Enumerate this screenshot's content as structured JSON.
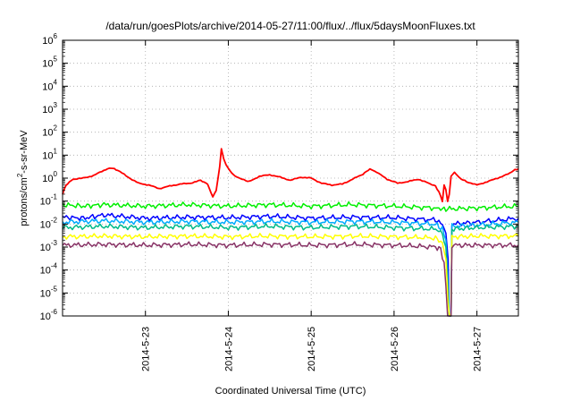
{
  "chart_data": {
    "type": "line",
    "title": "/data/run/goesPlots/archive/2014-05-27/11:00/flux/../flux/5daysMoonFluxes.txt",
    "xlabel": "Coordinated Universal Time (UTC)",
    "ylabel": {
      "prefix": "protons/cm",
      "sup": "2",
      "suffix": "-s-sr-MeV"
    },
    "y_scale": "log",
    "ylim": [
      1e-06,
      1000000.0
    ],
    "y_ticks": [
      {
        "base": "10",
        "exp": "-6",
        "value": 1e-06
      },
      {
        "base": "10",
        "exp": "-5",
        "value": 1e-05
      },
      {
        "base": "10",
        "exp": "-4",
        "value": 0.0001
      },
      {
        "base": "10",
        "exp": "-3",
        "value": 0.001
      },
      {
        "base": "10",
        "exp": "-2",
        "value": 0.01
      },
      {
        "base": "10",
        "exp": "-1",
        "value": 0.1
      },
      {
        "base": "10",
        "exp": "0",
        "value": 1
      },
      {
        "base": "10",
        "exp": "1",
        "value": 10
      },
      {
        "base": "10",
        "exp": "2",
        "value": 100
      },
      {
        "base": "10",
        "exp": "3",
        "value": 1000
      },
      {
        "base": "10",
        "exp": "4",
        "value": 10000
      },
      {
        "base": "10",
        "exp": "5",
        "value": 100000
      },
      {
        "base": "10",
        "exp": "6",
        "value": 1000000
      }
    ],
    "xlim": [
      "2014-05-22T00:00",
      "2014-05-27T12:00"
    ],
    "x_ticks": [
      {
        "label": "2014-5-23",
        "date": "2014-05-23T00:00"
      },
      {
        "label": "2014-5-24",
        "date": "2014-05-24T00:00"
      },
      {
        "label": "2014-5-25",
        "date": "2014-05-25T00:00"
      },
      {
        "label": "2014-5-26",
        "date": "2014-05-26T00:00"
      },
      {
        "label": "2014-5-27",
        "date": "2014-05-27T00:00"
      }
    ],
    "grid": true,
    "legend": "none",
    "series": [
      {
        "color": "#ff0000",
        "points": [
          [
            "2014-05-22T00:00",
            0.2
          ],
          [
            "2014-05-22T01:00",
            0.5
          ],
          [
            "2014-05-22T03:00",
            0.9
          ],
          [
            "2014-05-22T06:00",
            1.0
          ],
          [
            "2014-05-22T09:00",
            1.3
          ],
          [
            "2014-05-22T12:00",
            2.2
          ],
          [
            "2014-05-22T14:00",
            2.8
          ],
          [
            "2014-05-22T16:00",
            2.2
          ],
          [
            "2014-05-22T19:00",
            1.1
          ],
          [
            "2014-05-22T22:00",
            0.6
          ],
          [
            "2014-05-23T01:00",
            0.5
          ],
          [
            "2014-05-23T04:00",
            0.35
          ],
          [
            "2014-05-23T07:00",
            0.45
          ],
          [
            "2014-05-23T10:00",
            0.55
          ],
          [
            "2014-05-23T13:00",
            0.6
          ],
          [
            "2014-05-23T16:00",
            0.8
          ],
          [
            "2014-05-23T18:00",
            0.55
          ],
          [
            "2014-05-23T19:30",
            0.15
          ],
          [
            "2014-05-23T20:30",
            0.3
          ],
          [
            "2014-05-23T21:30",
            3.0
          ],
          [
            "2014-05-23T22:00",
            20
          ],
          [
            "2014-05-23T22:40",
            7.0
          ],
          [
            "2014-05-23T23:20",
            4.0
          ],
          [
            "2014-05-24T00:30",
            2.0
          ],
          [
            "2014-05-24T02:00",
            1.2
          ],
          [
            "2014-05-24T04:00",
            0.9
          ],
          [
            "2014-05-24T06:00",
            0.7
          ],
          [
            "2014-05-24T09:00",
            1.2
          ],
          [
            "2014-05-24T12:00",
            1.4
          ],
          [
            "2014-05-24T15:00",
            1.1
          ],
          [
            "2014-05-24T18:00",
            0.8
          ],
          [
            "2014-05-24T21:00",
            1.1
          ],
          [
            "2014-05-25T00:00",
            1.0
          ],
          [
            "2014-05-25T03:00",
            0.6
          ],
          [
            "2014-05-25T06:00",
            0.5
          ],
          [
            "2014-05-25T09:00",
            0.55
          ],
          [
            "2014-05-25T12:00",
            0.9
          ],
          [
            "2014-05-25T15:00",
            1.5
          ],
          [
            "2014-05-25T17:00",
            2.5
          ],
          [
            "2014-05-25T19:00",
            1.8
          ],
          [
            "2014-05-25T22:00",
            0.9
          ],
          [
            "2014-05-26T01:00",
            0.6
          ],
          [
            "2014-05-26T04:00",
            0.7
          ],
          [
            "2014-05-26T07:00",
            0.9
          ],
          [
            "2014-05-26T10:00",
            0.6
          ],
          [
            "2014-05-26T12:00",
            0.45
          ],
          [
            "2014-05-26T13:00",
            0.25
          ],
          [
            "2014-05-26T14:00",
            0.1
          ],
          [
            "2014-05-26T14:30",
            0.5
          ],
          [
            "2014-05-26T15:00",
            0.3
          ],
          [
            "2014-05-26T15:30",
            0.1
          ],
          [
            "2014-05-26T16:00",
            0.2
          ],
          [
            "2014-05-26T16:30",
            1.2
          ],
          [
            "2014-05-26T17:30",
            1.8
          ],
          [
            "2014-05-26T19:00",
            1.0
          ],
          [
            "2014-05-26T21:00",
            0.7
          ],
          [
            "2014-05-27T00:00",
            0.5
          ],
          [
            "2014-05-27T03:00",
            0.7
          ],
          [
            "2014-05-27T06:00",
            1.0
          ],
          [
            "2014-05-27T09:00",
            1.5
          ],
          [
            "2014-05-27T11:00",
            2.3
          ],
          [
            "2014-05-27T12:00",
            2.5
          ]
        ]
      },
      {
        "color": "#00ee00",
        "points": [
          [
            "2014-05-22T00:00",
            0.07
          ],
          [
            "2014-05-22T06:00",
            0.06
          ],
          [
            "2014-05-22T12:00",
            0.07
          ],
          [
            "2014-05-23T00:00",
            0.06
          ],
          [
            "2014-05-23T12:00",
            0.07
          ],
          [
            "2014-05-24T00:00",
            0.06
          ],
          [
            "2014-05-24T12:00",
            0.07
          ],
          [
            "2014-05-25T00:00",
            0.06
          ],
          [
            "2014-05-25T12:00",
            0.07
          ],
          [
            "2014-05-26T00:00",
            0.06
          ],
          [
            "2014-05-26T12:00",
            0.05
          ],
          [
            "2014-05-26T14:00",
            0.045
          ],
          [
            "2014-05-26T15:30",
            0.045
          ],
          [
            "2014-05-27T00:00",
            0.05
          ],
          [
            "2014-05-27T12:00",
            0.06
          ]
        ]
      },
      {
        "color": "#0000ff",
        "points": [
          [
            "2014-05-22T00:00",
            0.02
          ],
          [
            "2014-05-22T06:00",
            0.018
          ],
          [
            "2014-05-22T12:00",
            0.025
          ],
          [
            "2014-05-23T00:00",
            0.018
          ],
          [
            "2014-05-23T12:00",
            0.02
          ],
          [
            "2014-05-24T00:00",
            0.019
          ],
          [
            "2014-05-24T12:00",
            0.022
          ],
          [
            "2014-05-25T00:00",
            0.018
          ],
          [
            "2014-05-25T12:00",
            0.02
          ],
          [
            "2014-05-26T00:00",
            0.019
          ],
          [
            "2014-05-26T12:00",
            0.015
          ],
          [
            "2014-05-26T14:00",
            0.01
          ],
          [
            "2014-05-26T15:00",
            0.004
          ],
          [
            "2014-05-26T15:40",
            0.0003
          ],
          [
            "2014-05-26T16:00",
            1e-06
          ],
          [
            "2014-05-26T16:30",
            1e-06
          ],
          [
            "2014-05-26T16:45",
            0.01
          ],
          [
            "2014-05-27T00:00",
            0.012
          ],
          [
            "2014-05-27T12:00",
            0.018
          ]
        ]
      },
      {
        "color": "#00aaff",
        "points": [
          [
            "2014-05-22T00:00",
            0.012
          ],
          [
            "2014-05-22T12:00",
            0.014
          ],
          [
            "2014-05-23T00:00",
            0.012
          ],
          [
            "2014-05-23T12:00",
            0.013
          ],
          [
            "2014-05-24T00:00",
            0.012
          ],
          [
            "2014-05-24T12:00",
            0.013
          ],
          [
            "2014-05-25T00:00",
            0.012
          ],
          [
            "2014-05-25T12:00",
            0.013
          ],
          [
            "2014-05-26T00:00",
            0.012
          ],
          [
            "2014-05-26T12:00",
            0.01
          ],
          [
            "2014-05-26T14:00",
            0.006
          ],
          [
            "2014-05-26T15:00",
            0.002
          ],
          [
            "2014-05-26T15:40",
            3e-05
          ],
          [
            "2014-05-26T16:00",
            1e-06
          ],
          [
            "2014-05-26T16:30",
            1e-06
          ],
          [
            "2014-05-26T16:45",
            0.008
          ],
          [
            "2014-05-27T00:00",
            0.009
          ],
          [
            "2014-05-27T12:00",
            0.012
          ]
        ]
      },
      {
        "color": "#00bb88",
        "points": [
          [
            "2014-05-22T00:00",
            0.007
          ],
          [
            "2014-05-22T12:00",
            0.008
          ],
          [
            "2014-05-23T00:00",
            0.007
          ],
          [
            "2014-05-23T12:00",
            0.008
          ],
          [
            "2014-05-24T00:00",
            0.007
          ],
          [
            "2014-05-24T12:00",
            0.008
          ],
          [
            "2014-05-25T00:00",
            0.007
          ],
          [
            "2014-05-25T12:00",
            0.008
          ],
          [
            "2014-05-26T00:00",
            0.007
          ],
          [
            "2014-05-26T12:00",
            0.006
          ],
          [
            "2014-05-26T14:00",
            0.004
          ],
          [
            "2014-05-26T15:00",
            0.001
          ],
          [
            "2014-05-26T15:40",
            1e-05
          ],
          [
            "2014-05-26T16:00",
            1e-06
          ],
          [
            "2014-05-26T16:30",
            1e-06
          ],
          [
            "2014-05-26T16:45",
            0.006
          ],
          [
            "2014-05-27T00:00",
            0.007
          ],
          [
            "2014-05-27T12:00",
            0.008
          ]
        ]
      },
      {
        "color": "#ffff00",
        "points": [
          [
            "2014-05-22T00:00",
            0.0028
          ],
          [
            "2014-05-22T12:00",
            0.003
          ],
          [
            "2014-05-23T00:00",
            0.0028
          ],
          [
            "2014-05-23T12:00",
            0.003
          ],
          [
            "2014-05-24T00:00",
            0.0028
          ],
          [
            "2014-05-24T12:00",
            0.003
          ],
          [
            "2014-05-25T00:00",
            0.0028
          ],
          [
            "2014-05-25T12:00",
            0.003
          ],
          [
            "2014-05-26T00:00",
            0.0028
          ],
          [
            "2014-05-26T12:00",
            0.0025
          ],
          [
            "2014-05-26T14:00",
            0.0015
          ],
          [
            "2014-05-26T15:00",
            0.0003
          ],
          [
            "2014-05-26T15:40",
            5e-06
          ],
          [
            "2014-05-26T16:00",
            1e-06
          ],
          [
            "2014-05-26T16:30",
            1e-06
          ],
          [
            "2014-05-26T16:45",
            0.0028
          ],
          [
            "2014-05-27T00:00",
            0.003
          ],
          [
            "2014-05-27T12:00",
            0.003
          ]
        ]
      },
      {
        "color": "#883366",
        "points": [
          [
            "2014-05-22T00:00",
            0.0012
          ],
          [
            "2014-05-22T12:00",
            0.0013
          ],
          [
            "2014-05-23T00:00",
            0.0012
          ],
          [
            "2014-05-23T12:00",
            0.0013
          ],
          [
            "2014-05-24T00:00",
            0.0012
          ],
          [
            "2014-05-24T12:00",
            0.0013
          ],
          [
            "2014-05-25T00:00",
            0.0012
          ],
          [
            "2014-05-25T12:00",
            0.0013
          ],
          [
            "2014-05-26T00:00",
            0.0012
          ],
          [
            "2014-05-26T12:00",
            0.001
          ],
          [
            "2014-05-26T13:30",
            0.0008
          ],
          [
            "2014-05-26T14:30",
            0.0002
          ],
          [
            "2014-05-26T15:00",
            2e-05
          ],
          [
            "2014-05-26T15:30",
            1e-06
          ],
          [
            "2014-05-26T16:30",
            1e-06
          ],
          [
            "2014-05-26T16:45",
            0.0012
          ],
          [
            "2014-05-27T00:00",
            0.0012
          ],
          [
            "2014-05-27T12:00",
            0.0012
          ]
        ]
      }
    ]
  }
}
